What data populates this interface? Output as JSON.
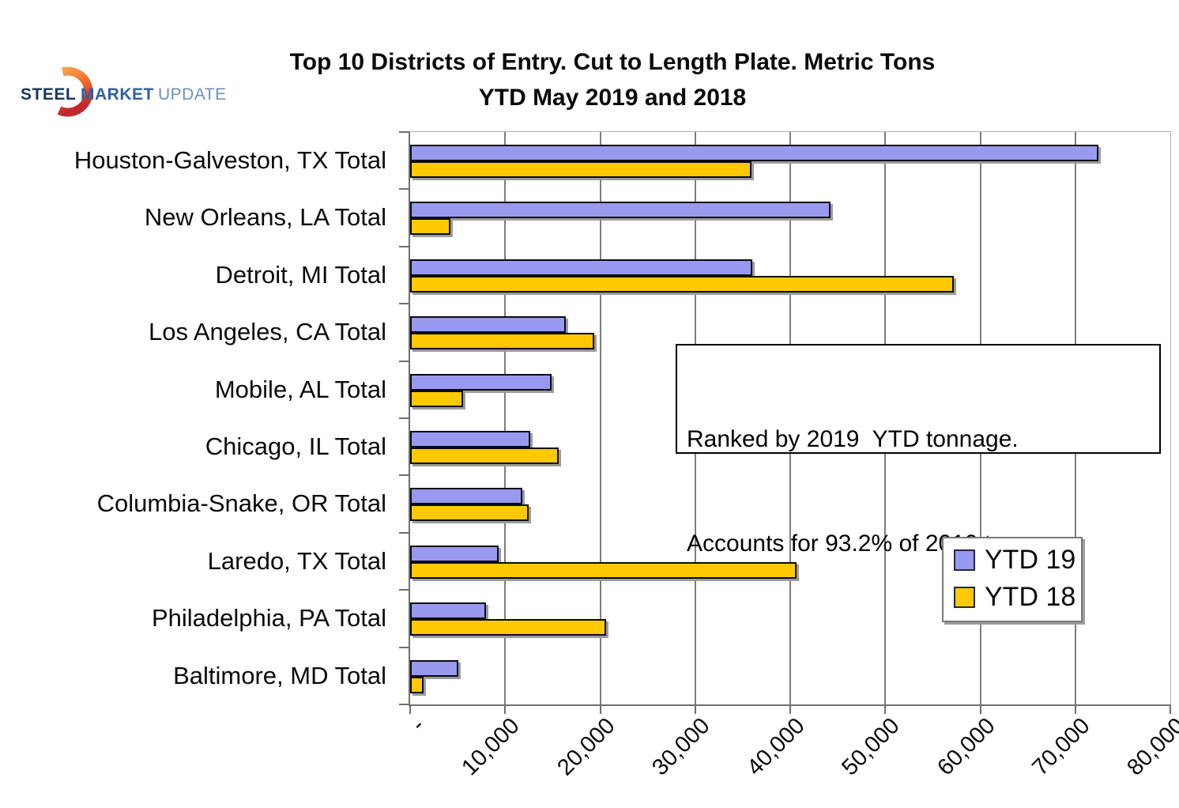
{
  "logo": {
    "word1": "STEEL",
    "word2": "MARKET",
    "word3": "UPDATE",
    "colors": {
      "word1": "#16365d",
      "word2": "#2e5fa4",
      "word3": "#6e90c0",
      "crescent_top": "#f9a34c",
      "crescent_mid": "#f15a24",
      "crescent_bottom": "#c1272d"
    }
  },
  "title": {
    "line1": "Top 10 Districts of Entry. Cut to Length Plate. Metric Tons",
    "line2": "YTD May 2019 and 2018"
  },
  "annotation": {
    "line1": "Ranked by 2019  YTD tonnage.",
    "line2": "Accounts for 93.2% of 2019 tonnage"
  },
  "legend": {
    "items": [
      {
        "label": "YTD 19",
        "color": "#9999f0"
      },
      {
        "label": "YTD 18",
        "color": "#ffc900"
      }
    ]
  },
  "chart_data": {
    "type": "bar",
    "orientation": "horizontal",
    "title": "Top 10 Districts of Entry. Cut to Length Plate. Metric Tons — YTD May 2019 and 2018",
    "categories": [
      "Houston-Galveston, TX Total",
      "New Orleans, LA Total",
      "Detroit, MI Total",
      "Los Angeles, CA Total",
      "Mobile, AL Total",
      "Chicago, IL Total",
      "Columbia-Snake, OR Total",
      "Laredo, TX Total",
      "Philadelphia, PA Total",
      "Baltimore, MD Total"
    ],
    "series": [
      {
        "name": "YTD 19",
        "color": "#9999f0",
        "values": [
          72400,
          44200,
          36000,
          16400,
          14900,
          12600,
          11800,
          9300,
          8000,
          5100
        ]
      },
      {
        "name": "YTD 18",
        "color": "#ffc900",
        "values": [
          35900,
          4200,
          57200,
          19400,
          5600,
          15600,
          12500,
          40700,
          20600,
          1400
        ]
      }
    ],
    "xlabel": "",
    "ylabel": "",
    "xlim": [
      0,
      80000
    ],
    "x_tick_labels": [
      "-",
      "10,000",
      "20,000",
      "30,000",
      "40,000",
      "50,000",
      "60,000",
      "70,000",
      "80,000"
    ],
    "grid": true,
    "legend_position": "inside-right"
  }
}
